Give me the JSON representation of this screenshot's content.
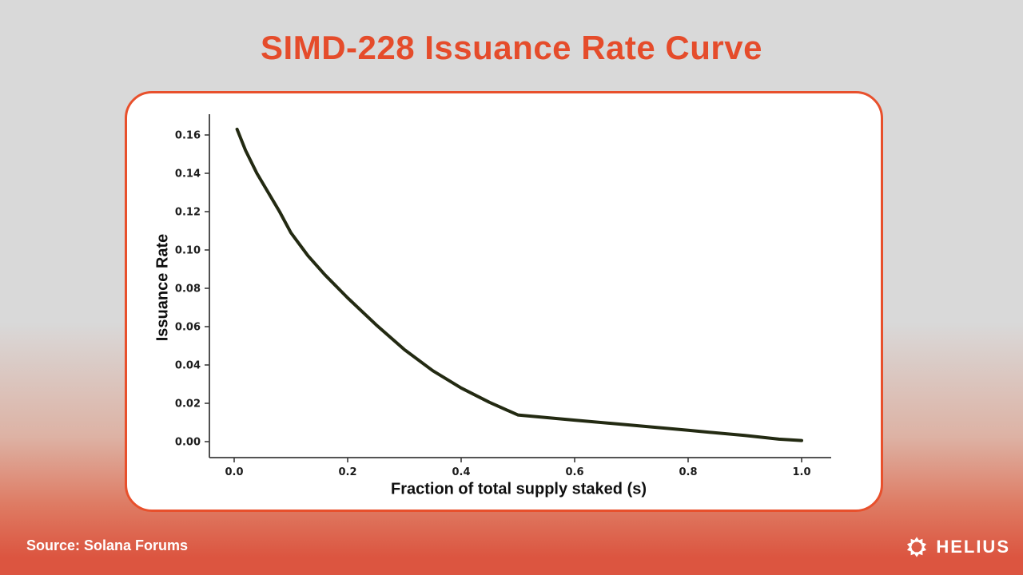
{
  "page": {
    "title": "SIMD-228 Issuance Rate Curve"
  },
  "theme": {
    "accent": "#E54C2B",
    "card_border": "#E8502C",
    "background_top": "#D9D9D9",
    "background_bottom": "#DC5540",
    "curve_color": "#232A12",
    "axis_color": "#3C3C3C"
  },
  "chart_data": {
    "type": "line",
    "title": "SIMD-228 Issuance Rate Curve",
    "xlabel": "Fraction of total supply staked (s)",
    "ylabel": "Issuance Rate",
    "x_ticks": [
      "0.0",
      "0.2",
      "0.4",
      "0.6",
      "0.8",
      "1.0"
    ],
    "y_ticks": [
      "0.00",
      "0.02",
      "0.04",
      "0.06",
      "0.08",
      "0.10",
      "0.12",
      "0.14",
      "0.16"
    ],
    "xlim": [
      -0.05,
      1.05
    ],
    "ylim": [
      -0.008,
      0.171
    ],
    "grid": false,
    "legend": "none",
    "line_color": "#232A12",
    "line_width": 4,
    "series": [
      {
        "name": "issuance-rate-curve",
        "x": [
          0.005,
          0.02,
          0.04,
          0.06,
          0.08,
          0.1,
          0.13,
          0.16,
          0.2,
          0.25,
          0.3,
          0.35,
          0.4,
          0.45,
          0.5,
          0.6,
          0.7,
          0.8,
          0.9,
          0.96,
          1.0
        ],
        "y": [
          0.163,
          0.152,
          0.14,
          0.13,
          0.12,
          0.109,
          0.097,
          0.087,
          0.075,
          0.061,
          0.048,
          0.037,
          0.028,
          0.0205,
          0.0139,
          0.0112,
          0.0086,
          0.0059,
          0.0032,
          0.0013,
          0.0006
        ]
      }
    ],
    "annotations": {
      "kink_point": {
        "x": 0.5,
        "y": 0.0139
      }
    }
  },
  "footer": {
    "source": "Source: Solana Forums",
    "brand": "HELIUS",
    "brand_icon": "helius-sunburst-icon"
  }
}
